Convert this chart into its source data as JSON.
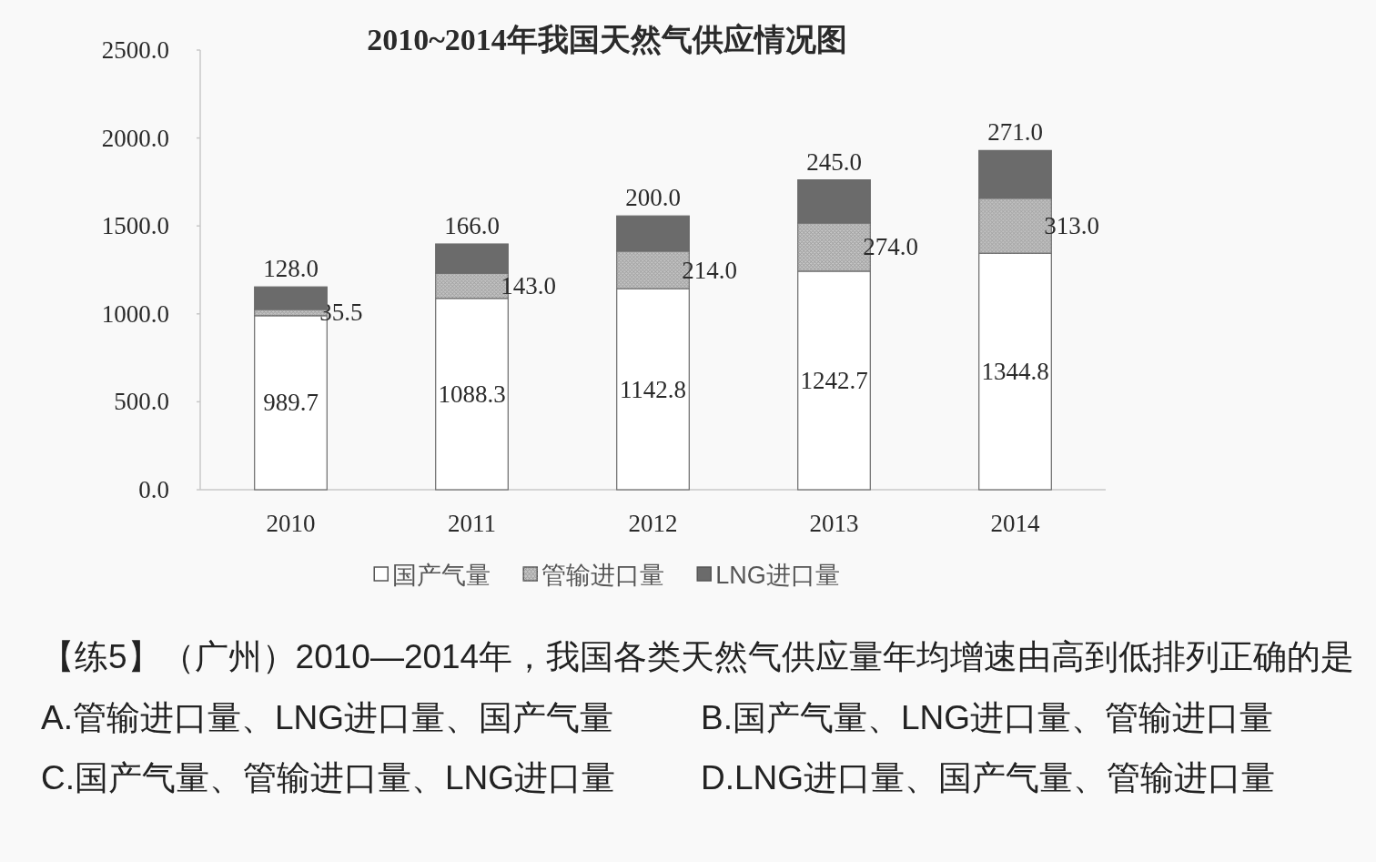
{
  "chart_data": {
    "type": "bar",
    "title": "2010~2014年我国天然气供应情况图",
    "categories": [
      "2010",
      "2011",
      "2012",
      "2013",
      "2014"
    ],
    "stacked": true,
    "series": [
      {
        "name": "国产气量",
        "color": "#ffffff",
        "values": [
          989.7,
          1088.3,
          1142.8,
          1242.7,
          1344.8
        ],
        "value_labels": [
          "989.7",
          "1088.3",
          "1142.8",
          "1242.7",
          "1344.8"
        ]
      },
      {
        "name": "管输进口量",
        "color": "#c4c4c4",
        "values": [
          35.5,
          143.0,
          214.0,
          274.0,
          313.0
        ],
        "value_labels": [
          "35.5",
          "143.0",
          "214.0",
          "274.0",
          "313.0"
        ]
      },
      {
        "name": "LNG进口量",
        "color": "#6b6b6b",
        "values": [
          128.0,
          166.0,
          200.0,
          245.0,
          271.0
        ],
        "value_labels": [
          "128.0",
          "166.0",
          "200.0",
          "245.0",
          "271.0"
        ]
      }
    ],
    "ylim": [
      0,
      2500
    ],
    "yticks": [
      {
        "value": 0,
        "label": "0.0"
      },
      {
        "value": 500,
        "label": "500.0"
      },
      {
        "value": 1000,
        "label": "1000.0"
      },
      {
        "value": 1500,
        "label": "1500.0"
      },
      {
        "value": 2000,
        "label": "2000.0"
      },
      {
        "value": 2500,
        "label": "2500.0"
      }
    ],
    "grid": false,
    "legend": "bottom",
    "annotations": [
      "【练5】（广州）2010—2014年，我国各类天然气供应量年均增速由高到低排列正确的是",
      "A.管输进口量、LNG进口量、国产气量",
      "B.国产气量、LNG进口量、管输进口量",
      "C.国产气量、管输进口量、LNG进口量",
      "D.LNG进口量、国产气量、管输进口量"
    ]
  }
}
